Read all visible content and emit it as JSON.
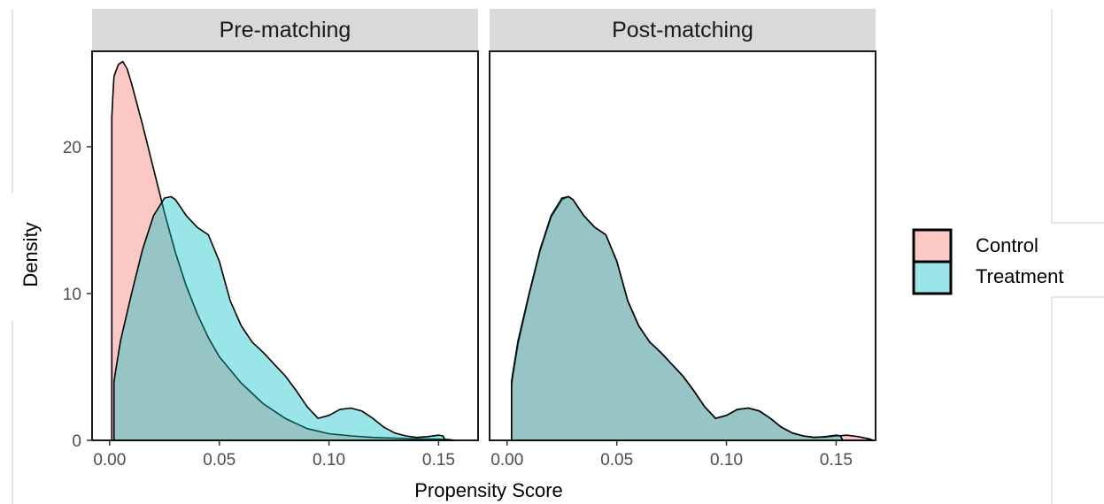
{
  "chart_data": {
    "type": "area",
    "xlabel": "Propensity Score",
    "ylabel": "Density",
    "xlim": [
      -0.008,
      0.168
    ],
    "ylim": [
      0,
      26.5
    ],
    "x_ticks": [
      0.0,
      0.05,
      0.1,
      0.15
    ],
    "x_tick_labels": [
      "0.00",
      "0.05",
      "0.10",
      "0.15"
    ],
    "y_ticks": [
      0,
      10,
      20
    ],
    "y_tick_labels": [
      "0",
      "10",
      "20"
    ],
    "grid": false,
    "legend_position": "right",
    "colors": {
      "Control": "#f8766d",
      "Treatment": "#00bfc4"
    },
    "panels": [
      {
        "title": "Pre-matching",
        "series": [
          {
            "name": "Control",
            "x": [
              0.001,
              0.0015,
              0.002,
              0.004,
              0.006,
              0.008,
              0.01,
              0.015,
              0.02,
              0.025,
              0.03,
              0.035,
              0.04,
              0.045,
              0.05,
              0.06,
              0.07,
              0.08,
              0.09,
              0.1,
              0.11,
              0.12,
              0.13,
              0.14,
              0.15,
              0.155,
              0.157
            ],
            "y": [
              22.0,
              23.5,
              24.8,
              25.6,
              25.8,
              25.3,
              24.3,
              21.5,
              18.5,
              15.5,
              12.8,
              10.5,
              8.6,
              7.0,
              5.7,
              3.9,
              2.5,
              1.5,
              0.8,
              0.45,
              0.3,
              0.2,
              0.15,
              0.1,
              0.08,
              0.05,
              0.0
            ]
          },
          {
            "name": "Treatment",
            "x": [
              0.002,
              0.0025,
              0.005,
              0.01,
              0.015,
              0.02,
              0.025,
              0.028,
              0.03,
              0.035,
              0.04,
              0.045,
              0.05,
              0.055,
              0.06,
              0.065,
              0.07,
              0.075,
              0.08,
              0.085,
              0.09,
              0.095,
              0.1,
              0.105,
              0.11,
              0.115,
              0.12,
              0.125,
              0.13,
              0.135,
              0.14,
              0.145,
              0.15,
              0.152,
              0.153
            ],
            "y": [
              4.0,
              4.5,
              6.8,
              10.0,
              13.0,
              15.3,
              16.5,
              16.6,
              16.4,
              15.3,
              14.5,
              14.0,
              12.2,
              9.5,
              7.8,
              6.7,
              6.0,
              5.2,
              4.4,
              3.4,
              2.3,
              1.5,
              1.7,
              2.1,
              2.2,
              2.0,
              1.5,
              0.9,
              0.5,
              0.3,
              0.2,
              0.25,
              0.35,
              0.3,
              0.0
            ]
          }
        ]
      },
      {
        "title": "Post-matching",
        "series": [
          {
            "name": "Control",
            "x": [
              0.002,
              0.0025,
              0.005,
              0.01,
              0.015,
              0.02,
              0.025,
              0.028,
              0.03,
              0.035,
              0.04,
              0.045,
              0.05,
              0.055,
              0.06,
              0.065,
              0.07,
              0.075,
              0.08,
              0.085,
              0.09,
              0.095,
              0.1,
              0.105,
              0.11,
              0.115,
              0.12,
              0.125,
              0.13,
              0.135,
              0.14,
              0.145,
              0.15,
              0.155,
              0.16,
              0.165,
              0.167
            ],
            "y": [
              3.7,
              4.3,
              6.6,
              9.9,
              12.9,
              15.2,
              16.4,
              16.6,
              16.4,
              15.3,
              14.5,
              14.0,
              12.2,
              9.5,
              7.8,
              6.7,
              6.0,
              5.2,
              4.4,
              3.4,
              2.3,
              1.5,
              1.7,
              2.1,
              2.2,
              2.0,
              1.5,
              0.9,
              0.5,
              0.3,
              0.2,
              0.22,
              0.3,
              0.35,
              0.25,
              0.1,
              0.0
            ]
          },
          {
            "name": "Treatment",
            "x": [
              0.002,
              0.0025,
              0.005,
              0.01,
              0.015,
              0.02,
              0.025,
              0.028,
              0.03,
              0.035,
              0.04,
              0.045,
              0.05,
              0.055,
              0.06,
              0.065,
              0.07,
              0.075,
              0.08,
              0.085,
              0.09,
              0.095,
              0.1,
              0.105,
              0.11,
              0.115,
              0.12,
              0.125,
              0.13,
              0.135,
              0.14,
              0.145,
              0.15,
              0.152,
              0.153
            ],
            "y": [
              4.0,
              4.5,
              6.8,
              10.0,
              13.0,
              15.3,
              16.5,
              16.6,
              16.4,
              15.3,
              14.5,
              14.0,
              12.2,
              9.5,
              7.8,
              6.7,
              6.0,
              5.2,
              4.4,
              3.4,
              2.3,
              1.5,
              1.7,
              2.1,
              2.2,
              2.0,
              1.5,
              0.9,
              0.5,
              0.3,
              0.2,
              0.25,
              0.35,
              0.3,
              0.0
            ]
          }
        ]
      }
    ]
  }
}
